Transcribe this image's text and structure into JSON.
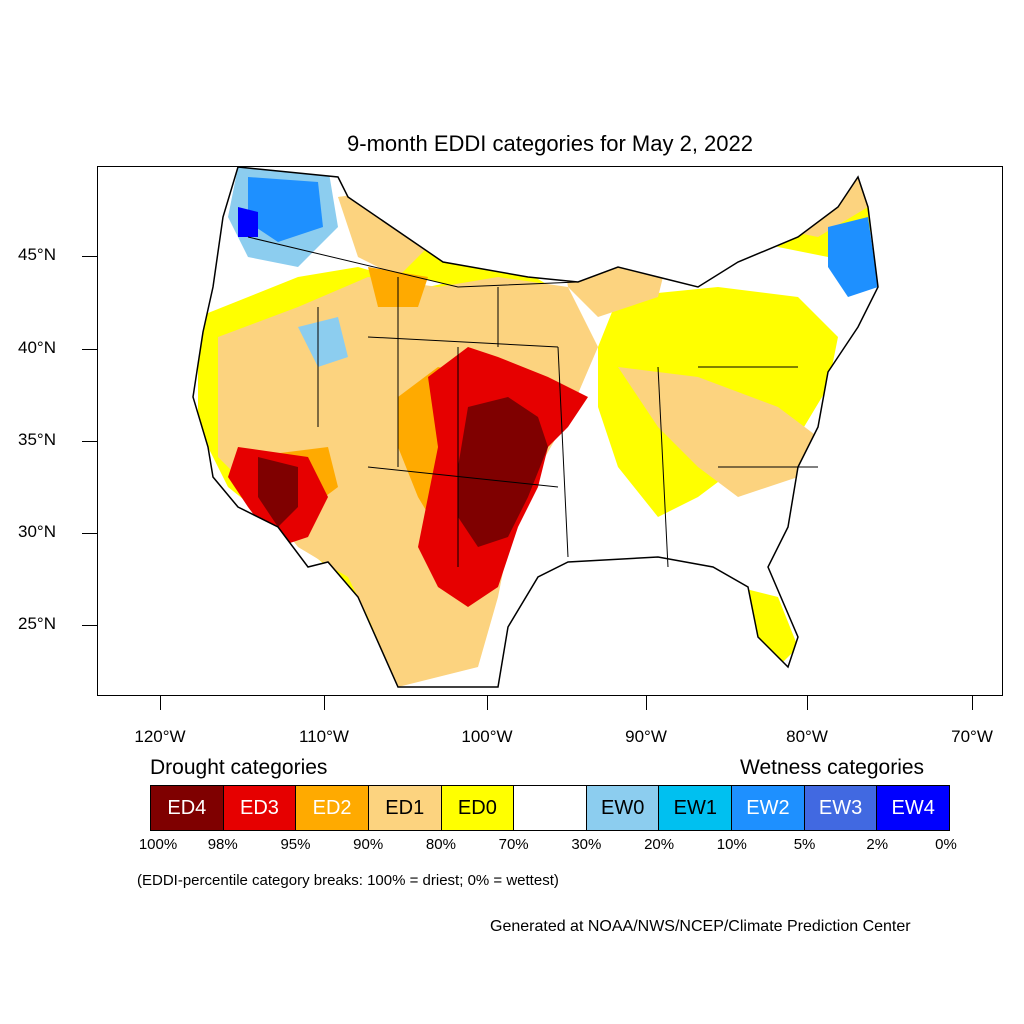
{
  "title": "9-month EDDI categories for May 2, 2022",
  "axes": {
    "y_ticks": [
      "45°N",
      "40°N",
      "35°N",
      "30°N",
      "25°N"
    ],
    "x_ticks": [
      "120°W",
      "110°W",
      "100°W",
      "90°W",
      "80°W",
      "70°W"
    ]
  },
  "legend": {
    "drought_heading": "Drought categories",
    "wetness_heading": "Wetness categories",
    "categories": [
      {
        "label": "ED4",
        "color": "#7f0000",
        "text_color": "#ffffff"
      },
      {
        "label": "ED3",
        "color": "#e60000",
        "text_color": "#ffffff"
      },
      {
        "label": "ED2",
        "color": "#ffaa00",
        "text_color": "#ffffff"
      },
      {
        "label": "ED1",
        "color": "#fcd37f",
        "text_color": "#000000"
      },
      {
        "label": "ED0",
        "color": "#ffff00",
        "text_color": "#000000"
      },
      {
        "label": "",
        "color": "#ffffff",
        "text_color": "#000000"
      },
      {
        "label": "EW0",
        "color": "#8ccdef",
        "text_color": "#000000"
      },
      {
        "label": "EW1",
        "color": "#00c0f0",
        "text_color": "#000000"
      },
      {
        "label": "EW2",
        "color": "#1e90ff",
        "text_color": "#ffffff"
      },
      {
        "label": "EW3",
        "color": "#4169e1",
        "text_color": "#ffffff"
      },
      {
        "label": "EW4",
        "color": "#0000ff",
        "text_color": "#ffffff"
      }
    ],
    "percentiles": [
      "100%",
      "98%",
      "95%",
      "90%",
      "80%",
      "70%",
      "30%",
      "20%",
      "10%",
      "5%",
      "2%",
      "0%"
    ]
  },
  "note": "(EDDI-percentile category breaks: 100% = driest; 0% = wettest)",
  "credit": "Generated at NOAA/NWS/NCEP/Climate Prediction Center"
}
